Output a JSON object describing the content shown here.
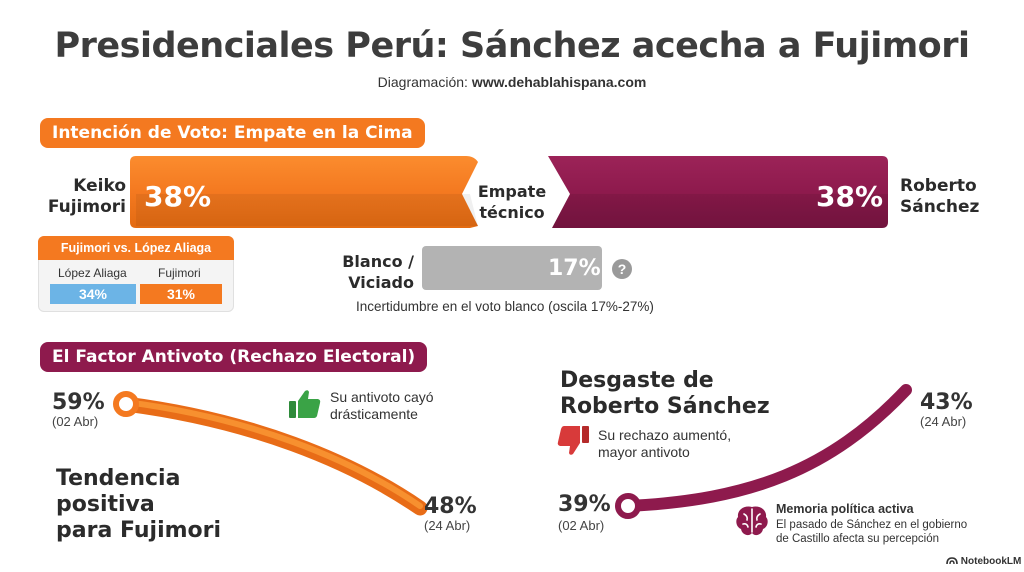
{
  "header": {
    "title": "Presidenciales Perú: Sánchez acecha a Fujimori",
    "credit_label": "Diagramación:",
    "credit_site": "www.dehablahispana.com"
  },
  "vote_intention": {
    "section_title": "Intención de Voto: Empate en la Cima",
    "left_candidate": {
      "name_line1": "Keiko",
      "name_line2": "Fujimori",
      "percent": "38%"
    },
    "right_candidate": {
      "name_line1": "Roberto",
      "name_line2": "Sánchez",
      "percent": "38%"
    },
    "center_line1": "Empate",
    "center_line2": "técnico",
    "blank": {
      "label_line1": "Blanco /",
      "label_line2": "Viciado",
      "percent": "17%",
      "help_icon": "question-icon",
      "note": "Incertidumbre en el voto blanco (oscila 17%-27%)"
    },
    "runoff": {
      "title": "Fujimori vs. López Aliaga",
      "a_label": "López Aliaga",
      "a_value": "34%",
      "b_label": "Fujimori",
      "b_value": "31%"
    }
  },
  "antivote": {
    "section_title": "El Factor Antivoto (Rechazo Electoral)",
    "fujimori": {
      "start_percent": "59%",
      "start_date": "(02 Abr)",
      "end_percent": "48%",
      "end_date": "(24 Abr)",
      "note_line1": "Su antivoto cayó",
      "note_line2": "drásticamente",
      "note_icon": "thumbs-up-icon",
      "headline_line1": "Tendencia",
      "headline_line2": "positiva",
      "headline_line3": "para Fujimori"
    },
    "sanchez": {
      "headline_line1": "Desgaste de",
      "headline_line2": "Roberto Sánchez",
      "note_line1": "Su rechazo aumentó,",
      "note_line2": "mayor antivoto",
      "note_icon": "thumbs-down-icon",
      "start_percent": "39%",
      "start_date": "(02 Abr)",
      "end_percent": "43%",
      "end_date": "(24 Abr)",
      "memory_title": "Memoria política activa",
      "memory_line1": "El pasado de Sánchez en el gobierno",
      "memory_line2": "de Castillo afecta su percepción",
      "memory_icon": "brain-icon"
    }
  },
  "footer": {
    "brand": "NotebookLM",
    "brand_icon": "notebook-logo-icon"
  },
  "colors": {
    "orange": "#f47920",
    "maroon": "#8e1a4d",
    "gray": "#b3b3b3",
    "blue": "#6cb4e6",
    "green": "#3aa346",
    "red": "#d83a3a"
  }
}
